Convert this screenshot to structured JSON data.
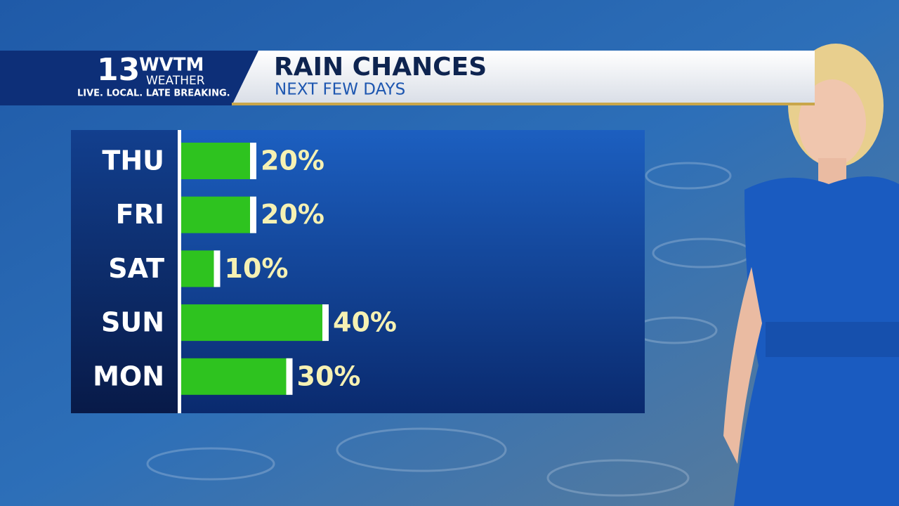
{
  "logo": {
    "number": "13",
    "call_sign": "WVTM",
    "brand": "WEATHER",
    "tagline": "LIVE. LOCAL. LATE BREAKING."
  },
  "chart_data": {
    "type": "bar",
    "orientation": "horizontal",
    "title": "RAIN CHANCES",
    "subtitle": "NEXT FEW DAYS",
    "categories": [
      "THU",
      "FRI",
      "SAT",
      "SUN",
      "MON"
    ],
    "values": [
      20,
      20,
      10,
      40,
      30
    ],
    "value_labels": [
      "20%",
      "20%",
      "10%",
      "40%",
      "30%"
    ],
    "color": "#2ec31f"
  }
}
